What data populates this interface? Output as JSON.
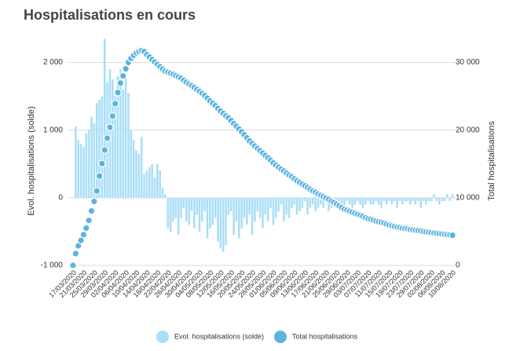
{
  "chart_data": {
    "type": "combo",
    "title": "Hospitalisations en cours",
    "ylabel": "Evol. hospitalisations (solde)",
    "y2label": "Total hospitalisations",
    "ylim": [
      -1000,
      2400
    ],
    "yticks": [
      {
        "value": -1000,
        "label": "-1 000"
      },
      0,
      {
        "value": 1000,
        "label": "1 000"
      },
      {
        "value": 2000,
        "label": "2 000"
      }
    ],
    "y2lim": [
      0,
      34000
    ],
    "y2ticks": [
      0,
      {
        "value": 10000,
        "label": "10 000"
      },
      {
        "value": 20000,
        "label": "20 000"
      },
      {
        "value": 30000,
        "label": "30 000"
      }
    ],
    "grid": true,
    "legend": "bottom",
    "categories": [
      "17/03/2020",
      null,
      null,
      null,
      "21/03/2020",
      null,
      null,
      null,
      "25/03/2020",
      null,
      null,
      null,
      "29/03/2020",
      null,
      null,
      null,
      "02/04/2020",
      null,
      null,
      null,
      "06/04/2020",
      null,
      null,
      null,
      "10/04/2020",
      null,
      null,
      null,
      "14/04/2020",
      null,
      null,
      null,
      "18/04/2020",
      null,
      null,
      null,
      "22/04/2020",
      null,
      null,
      null,
      "26/04/2020",
      null,
      null,
      null,
      "30/04/2020",
      null,
      null,
      null,
      "04/05/2020",
      null,
      null,
      null,
      "08/05/2020",
      null,
      null,
      null,
      "12/05/2020",
      null,
      null,
      null,
      "16/05/2020",
      null,
      null,
      null,
      "20/05/2020",
      null,
      null,
      null,
      "24/05/2020",
      null,
      null,
      null,
      "28/05/2020",
      null,
      null,
      null,
      "01/06/2020",
      null,
      null,
      null,
      "05/06/2020",
      null,
      null,
      null,
      "09/06/2020",
      null,
      null,
      null,
      "13/06/2020",
      null,
      null,
      null,
      "17/06/2020",
      null,
      null,
      null,
      "21/06/2020",
      null,
      null,
      null,
      "25/06/2020",
      null,
      null,
      null,
      "29/06/2020",
      null,
      null,
      null,
      "03/07/2020",
      null,
      null,
      null,
      "07/07/2020",
      null,
      null,
      null,
      "11/07/2020",
      null,
      null,
      null,
      "15/07/2020",
      null,
      null,
      null,
      "19/07/2020",
      null,
      null,
      null,
      "23/07/2020",
      null,
      null,
      null,
      "29/07/2020",
      null,
      null,
      null,
      "02/08/2020",
      null,
      null,
      null,
      "06/08/2020",
      null,
      null,
      null,
      "10/08/2020"
    ],
    "series": [
      {
        "name": "Evol. hospitalisations (solde)",
        "type": "bar",
        "color": "#a9def7",
        "values": [
          null,
          1050,
          850,
          800,
          750,
          950,
          1000,
          1200,
          1100,
          1400,
          1450,
          1500,
          2350,
          1700,
          1900,
          1750,
          1500,
          1800,
          1900,
          1600,
          1800,
          1550,
          1000,
          850,
          700,
          650,
          900,
          350,
          400,
          450,
          500,
          300,
          500,
          400,
          150,
          50,
          -450,
          -500,
          -350,
          -300,
          -550,
          -300,
          -150,
          -350,
          -400,
          -200,
          -450,
          -250,
          -500,
          -350,
          -200,
          -600,
          -450,
          -400,
          -300,
          -650,
          -750,
          -800,
          -700,
          -250,
          -200,
          -550,
          -350,
          -600,
          -450,
          -300,
          -400,
          -250,
          -550,
          -350,
          -200,
          -300,
          -450,
          -250,
          -350,
          -150,
          -400,
          -300,
          -200,
          -100,
          -350,
          -250,
          -300,
          -150,
          -100,
          -250,
          -200,
          -150,
          -50,
          -250,
          -150,
          -100,
          -200,
          -150,
          -100,
          -150,
          -50,
          -200,
          -150,
          -100,
          -150,
          -50,
          -100,
          -150,
          -50,
          -100,
          -150,
          -100,
          -50,
          -100,
          -150,
          -100,
          -50,
          -100,
          -100,
          -50,
          -100,
          -150,
          -50,
          -100,
          -50,
          -100,
          -50,
          -150,
          -50,
          -100,
          -50,
          -50,
          -100,
          -50,
          -100,
          -50,
          -150,
          -50,
          -100,
          -50,
          -50,
          50,
          -50,
          -100,
          -50,
          -50,
          50,
          -50,
          50
        ]
      },
      {
        "name": "Total hospitalisations",
        "type": "scatter",
        "axis": "y2",
        "color": "#5ab4e0",
        "values": [
          0,
          1750,
          2900,
          3700,
          4550,
          5500,
          6650,
          8050,
          9450,
          11000,
          13200,
          15050,
          17050,
          18800,
          20400,
          22050,
          23900,
          25550,
          26950,
          28000,
          29050,
          30000,
          30600,
          31050,
          31400,
          31600,
          31750,
          31600,
          31150,
          30800,
          30400,
          30050,
          29700,
          29350,
          29000,
          28700,
          28550,
          28400,
          28250,
          28050,
          27850,
          27650,
          27350,
          27050,
          26800,
          26550,
          26300,
          26000,
          25700,
          25400,
          25100,
          24700,
          24300,
          23950,
          23600,
          23200,
          22800,
          22450,
          22100,
          21800,
          21400,
          20950,
          20550,
          20150,
          19750,
          19300,
          18850,
          18400,
          18000,
          17650,
          17300,
          16950,
          16600,
          16250,
          15900,
          15550,
          15150,
          14800,
          14500,
          14200,
          13950,
          13650,
          13350,
          13100,
          12800,
          12500,
          12250,
          12000,
          11750,
          11500,
          11250,
          11000,
          10800,
          10550,
          10350,
          10150,
          9950,
          9750,
          9500,
          9300,
          9050,
          8800,
          8550,
          8300,
          8150,
          8000,
          7850,
          7700,
          7550,
          7400,
          7250,
          7050,
          6900,
          6800,
          6700,
          6550,
          6450,
          6350,
          6250,
          6100,
          5950,
          5850,
          5750,
          5650,
          5600,
          5500,
          5450,
          5400,
          5300,
          5250,
          5200,
          5150,
          5100,
          5000,
          4950,
          4900,
          4850,
          4800,
          4750,
          4700,
          4650,
          4600,
          4550,
          4500,
          4450
        ]
      }
    ]
  }
}
